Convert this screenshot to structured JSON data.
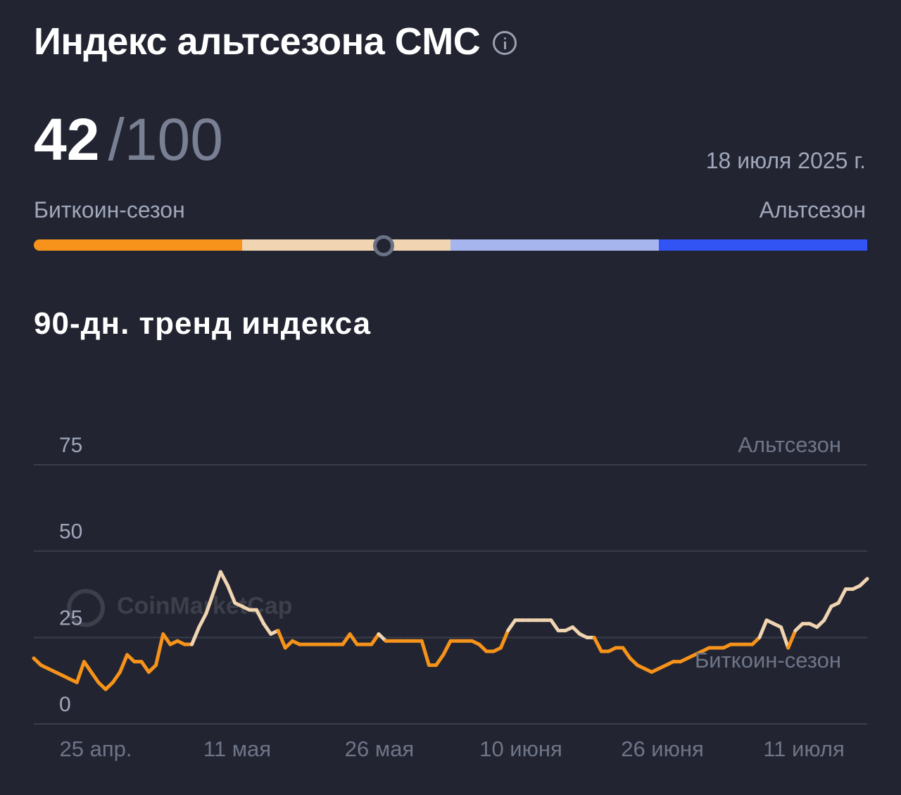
{
  "header": {
    "title": "Индекс альтсезона CMC",
    "info_icon": "info-icon"
  },
  "score": {
    "value": "42",
    "max": "/100"
  },
  "date": "18 июля 2025 г.",
  "scale": {
    "left_label": "Биткоин-сезон",
    "right_label": "Альтсезон",
    "current": 42,
    "segments": [
      "#f7931a",
      "#f1d4b1",
      "#a7b5ee",
      "#3354f4"
    ]
  },
  "trend": {
    "title": "90-дн. тренд индекса"
  },
  "watermark": "CoinMarketCap",
  "colors": {
    "background": "#222531",
    "bitcoin": "#f7931a",
    "neutral": "#f1d4b1"
  },
  "chart_data": {
    "type": "line",
    "ylim": [
      0,
      75
    ],
    "yticks": [
      "0",
      "25",
      "50",
      "75"
    ],
    "xticks": [
      "25 апр.",
      "11 мая",
      "26 мая",
      "10 июня",
      "26 июня",
      "11 июля"
    ],
    "annotations": {
      "top_band": "Альтсезон",
      "bottom_band": "Биткоин-сезон"
    },
    "color_threshold": 25,
    "series": [
      {
        "values": [
          19,
          17,
          16,
          15,
          14,
          13,
          12,
          18,
          15,
          12,
          10,
          12,
          15,
          20,
          18,
          18,
          15,
          17,
          26,
          23,
          24,
          23,
          23,
          28,
          32,
          38,
          44,
          40,
          35,
          34,
          33,
          33,
          29,
          26,
          27,
          22,
          24,
          23,
          23,
          23,
          23,
          23,
          23,
          23,
          26,
          23,
          23,
          23,
          26,
          24,
          24,
          24,
          24,
          24,
          24,
          17,
          17,
          20,
          24,
          24,
          24,
          24,
          23,
          21,
          21,
          22,
          27,
          30,
          30,
          30,
          30,
          30,
          30,
          27,
          27,
          28,
          26,
          25,
          25,
          21,
          21,
          22,
          22,
          19,
          17,
          16,
          15,
          16,
          17,
          18,
          18,
          19,
          20,
          21,
          22,
          22,
          22,
          23,
          23,
          23,
          23,
          25,
          30,
          29,
          28,
          22,
          27,
          29,
          29,
          28,
          30,
          34,
          35,
          39,
          39,
          40,
          42
        ]
      }
    ]
  }
}
